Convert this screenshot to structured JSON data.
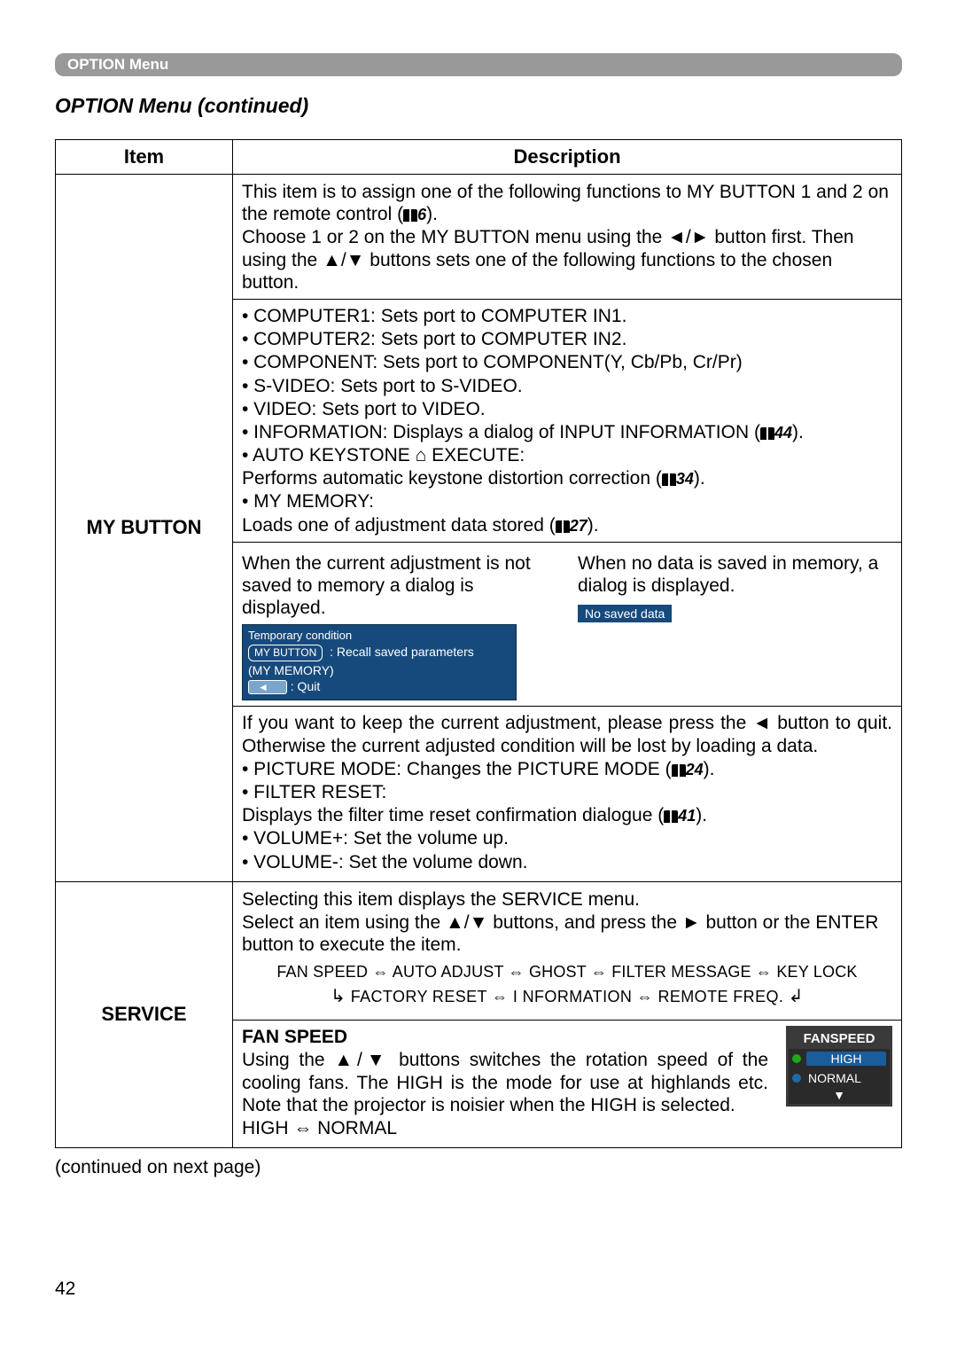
{
  "breadcrumb": "OPTION Menu",
  "section_title": "OPTION Menu (continued)",
  "table_headers": {
    "item": "Item",
    "description": "Description"
  },
  "rows": {
    "mybutton": {
      "label": "MY BUTTON",
      "intro1": "This item is to assign one of the following functions to MY BUTTON 1 and 2 on the remote control (",
      "intro1_ref": "6",
      "intro1_end": ").",
      "intro2": "Choose 1 or 2 on the MY BUTTON menu using the ◄/► button first. Then using the ▲/▼ buttons sets one of the following functions to the chosen button.",
      "bullet1": "• COMPUTER1: Sets port to COMPUTER IN1.",
      "bullet2": "• COMPUTER2: Sets port to COMPUTER IN2.",
      "bullet3": "• COMPONENT: Sets port to COMPONENT(Y, Cb/Pb, Cr/Pr)",
      "bullet4": "• S-VIDEO: Sets port to S-VIDEO.",
      "bullet5": "• VIDEO: Sets port to VIDEO.",
      "bullet6a": "• INFORMATION: Displays a dialog of INPUT INFORMATION (",
      "bullet6_ref": "44",
      "bullet6b": ").",
      "bullet7": "• AUTO KEYSTONE ⌂ EXECUTE:",
      "bullet7sub_a": "Performs automatic keystone distortion correction (",
      "bullet7sub_ref": "34",
      "bullet7sub_b": ").",
      "bullet8": "• MY MEMORY:",
      "bullet8sub_a": "Loads one of adjustment data stored (",
      "bullet8sub_ref": "27",
      "bullet8sub_b": ").",
      "left_dialog_text": "When the current adjustment is not saved to memory a dialog is displayed.",
      "right_dialog_text": "When no data is saved in memory, a dialog is displayed.",
      "lcd_header": "Temporary condition",
      "lcd_btn1": "MY BUTTON",
      "lcd_recall": ": Recall saved parameters",
      "lcd_sub": "(MY MEMORY)",
      "lcd_quitarrow": "◄",
      "lcd_quit": ": Quit",
      "nosaved_label": "No saved data",
      "after1": "If you want to keep the current adjustment, please press the ◄ button to quit. Otherwise the current adjusted condition will be lost by loading a data.",
      "after2a": "• PICTURE MODE: Changes the PICTURE MODE (",
      "after2_ref": "24",
      "after2b": ").",
      "after3": "• FILTER RESET:",
      "after3sub_a": "Displays the filter time reset confirmation dialogue (",
      "after3sub_ref": "41",
      "after3sub_b": ").",
      "after4": "• VOLUME+: Set the volume up.",
      "after5": "• VOLUME-: Set the volume down."
    },
    "service": {
      "label": "SERVICE",
      "intro1": "Selecting this item displays the SERVICE menu.",
      "intro2": "Select an item using the ▲/▼ buttons, and press the ► button or the ENTER button to execute the item.",
      "cycle1": "FAN SPEED ⇔ AUTO ADJUST ⇔ GHOST ⇔ FILTER MESSAGE ⇔ KEY LOCK",
      "cycle2_left": "↳",
      "cycle2_mid": "FACTORY RESET  ⇔  I NFORMATION  ⇔  REMOTE FREQ.",
      "cycle2_right": "↲",
      "fanspeed_title": "FAN SPEED",
      "fanspeed_text": "Using the ▲/▼ buttons switches the rotation speed of the cooling fans. The HIGH is the mode for use at highlands etc. Note that the projector is noisier when the HIGH is selected.",
      "fanspeed_line": "HIGH ⇔ NORMAL",
      "fanspeed_box": {
        "title": "FANSPEED",
        "high": "HIGH",
        "normal": "NORMAL",
        "down": "▼"
      }
    }
  },
  "continued": "(continued on next page)",
  "pagenum": "42"
}
